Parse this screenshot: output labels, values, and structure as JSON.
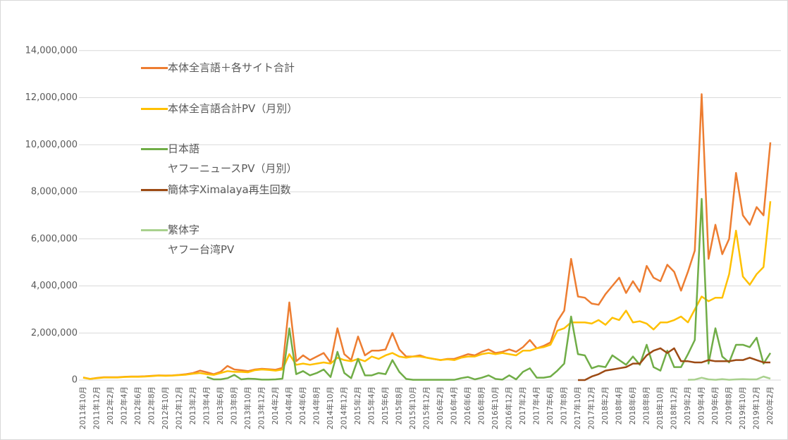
{
  "chart_data": {
    "type": "line",
    "categories": [
      "2011年10月",
      null,
      "2011年12月",
      null,
      "2012年2月",
      null,
      "2012年4月",
      null,
      "2012年6月",
      null,
      "2012年8月",
      null,
      "2012年10月",
      null,
      "2012年12月",
      null,
      "2013年2月",
      null,
      "2013年4月",
      null,
      "2013年6月",
      null,
      "2013年8月",
      null,
      "2013年10月",
      null,
      "2013年12月",
      null,
      "2014年2月",
      null,
      "2014年4月",
      null,
      "2014年6月",
      null,
      "2014年8月",
      null,
      "2014年10月",
      null,
      "2014年12月",
      null,
      "2015年2月",
      null,
      "2015年4月",
      null,
      "2015年6月",
      null,
      "2015年8月",
      null,
      "2015年10月",
      null,
      "2015年12月",
      null,
      "2016年2月",
      null,
      "2016年4月",
      null,
      "2016年6月",
      null,
      "2016年8月",
      null,
      "2016年10月",
      null,
      "2016年12月",
      null,
      "2017年2月",
      null,
      "2017年4月",
      null,
      "2017年6月",
      null,
      "2017年8月",
      null,
      "2017年10月",
      null,
      "2017年12月",
      null,
      "2018年2月",
      null,
      "2018年4月",
      null,
      "2018年6月",
      null,
      "2018年8月",
      null,
      "2018年10月",
      null,
      "2018年12月",
      null,
      "2019年2月",
      null,
      "2019年4月",
      null,
      "2019年6月",
      null,
      "2019年8月",
      null,
      "2019年10月",
      null,
      "2019年12月",
      null,
      "2020年2月"
    ],
    "series": [
      {
        "name": "本体全言語＋各サイト合計",
        "color": "#ed7d31",
        "values": [
          110000,
          50000,
          90000,
          120000,
          120000,
          120000,
          140000,
          150000,
          150000,
          160000,
          180000,
          200000,
          190000,
          200000,
          220000,
          250000,
          300000,
          400000,
          330000,
          250000,
          350000,
          600000,
          450000,
          420000,
          380000,
          450000,
          480000,
          460000,
          440000,
          520000,
          3300000,
          800000,
          1050000,
          850000,
          1000000,
          1150000,
          750000,
          2200000,
          1100000,
          850000,
          1850000,
          1050000,
          1250000,
          1250000,
          1300000,
          2000000,
          1300000,
          1000000,
          1000000,
          1050000,
          950000,
          900000,
          850000,
          900000,
          900000,
          1000000,
          1100000,
          1050000,
          1200000,
          1300000,
          1150000,
          1200000,
          1300000,
          1200000,
          1400000,
          1700000,
          1350000,
          1450000,
          1600000,
          2500000,
          2950000,
          5150000,
          3550000,
          3500000,
          3250000,
          3200000,
          3650000,
          4000000,
          4350000,
          3700000,
          4200000,
          3750000,
          4850000,
          4350000,
          4200000,
          4900000,
          4600000,
          3800000,
          4600000,
          5500000,
          12150000,
          5150000,
          6600000,
          5350000,
          6000000,
          8800000,
          7000000,
          6600000,
          7350000,
          7000000,
          10100000
        ]
      },
      {
        "name": "本体全言語合計PV（月別）",
        "color": "#ffc000",
        "values": [
          100000,
          50000,
          80000,
          110000,
          110000,
          110000,
          130000,
          140000,
          140000,
          150000,
          170000,
          190000,
          180000,
          190000,
          210000,
          230000,
          270000,
          300000,
          250000,
          220000,
          300000,
          380000,
          350000,
          350000,
          330000,
          420000,
          450000,
          430000,
          400000,
          450000,
          1100000,
          650000,
          700000,
          650000,
          700000,
          750000,
          700000,
          950000,
          850000,
          800000,
          900000,
          800000,
          1000000,
          900000,
          1050000,
          1150000,
          1000000,
          950000,
          1000000,
          1000000,
          950000,
          900000,
          850000,
          880000,
          850000,
          950000,
          1000000,
          1000000,
          1100000,
          1150000,
          1100000,
          1150000,
          1100000,
          1050000,
          1250000,
          1250000,
          1350000,
          1400000,
          1500000,
          2100000,
          2200000,
          2450000,
          2450000,
          2450000,
          2400000,
          2550000,
          2350000,
          2650000,
          2550000,
          2950000,
          2450000,
          2500000,
          2400000,
          2150000,
          2450000,
          2450000,
          2550000,
          2700000,
          2450000,
          3000000,
          3550000,
          3350000,
          3500000,
          3500000,
          4500000,
          6350000,
          4400000,
          4050000,
          4500000,
          4800000,
          7600000
        ]
      },
      {
        "name": "日本語\nヤフーニュースPV（月別）",
        "color": "#70ad47",
        "values": [
          null,
          null,
          null,
          null,
          null,
          null,
          null,
          null,
          null,
          null,
          null,
          null,
          null,
          null,
          null,
          null,
          null,
          null,
          130000,
          30000,
          30000,
          80000,
          220000,
          30000,
          60000,
          50000,
          20000,
          20000,
          30000,
          60000,
          2200000,
          250000,
          380000,
          200000,
          300000,
          450000,
          130000,
          1200000,
          300000,
          80000,
          900000,
          200000,
          200000,
          300000,
          250000,
          850000,
          350000,
          50000,
          10000,
          10000,
          10000,
          10000,
          10000,
          10000,
          10000,
          80000,
          130000,
          30000,
          100000,
          200000,
          50000,
          20000,
          200000,
          30000,
          350000,
          500000,
          100000,
          100000,
          150000,
          400000,
          700000,
          2700000,
          1100000,
          1050000,
          500000,
          600000,
          550000,
          1050000,
          850000,
          650000,
          1000000,
          650000,
          1500000,
          550000,
          400000,
          1250000,
          550000,
          550000,
          1100000,
          1700000,
          7700000,
          700000,
          2200000,
          1000000,
          750000,
          1500000,
          1500000,
          1400000,
          1800000,
          700000,
          1150000
        ]
      },
      {
        "name": "簡体字Ximalaya再生回数",
        "color": "#9c4a14",
        "values": [
          null,
          null,
          null,
          null,
          null,
          null,
          null,
          null,
          null,
          null,
          null,
          null,
          null,
          null,
          null,
          null,
          null,
          null,
          null,
          null,
          null,
          null,
          null,
          null,
          null,
          null,
          null,
          null,
          null,
          null,
          null,
          null,
          null,
          null,
          null,
          null,
          null,
          null,
          null,
          null,
          null,
          null,
          null,
          null,
          null,
          null,
          null,
          null,
          null,
          null,
          null,
          null,
          null,
          null,
          null,
          null,
          null,
          null,
          null,
          null,
          null,
          null,
          null,
          null,
          null,
          null,
          null,
          null,
          null,
          null,
          null,
          null,
          0,
          0,
          150000,
          250000,
          400000,
          450000,
          500000,
          550000,
          700000,
          700000,
          1050000,
          1250000,
          1350000,
          1150000,
          1350000,
          800000,
          800000,
          750000,
          750000,
          850000,
          800000,
          800000,
          800000,
          850000,
          850000,
          950000,
          850000,
          750000,
          750000
        ]
      },
      {
        "name": "繁体字\nヤフー台湾PV",
        "color": "#a9d18e",
        "values": [
          null,
          null,
          null,
          null,
          null,
          null,
          null,
          null,
          null,
          null,
          null,
          null,
          null,
          null,
          null,
          null,
          null,
          null,
          null,
          null,
          null,
          null,
          null,
          null,
          null,
          null,
          null,
          null,
          null,
          null,
          null,
          null,
          null,
          null,
          null,
          null,
          null,
          null,
          null,
          null,
          null,
          null,
          null,
          null,
          null,
          null,
          null,
          null,
          null,
          null,
          null,
          null,
          null,
          null,
          null,
          null,
          null,
          null,
          null,
          null,
          null,
          null,
          null,
          null,
          null,
          null,
          null,
          null,
          null,
          null,
          null,
          null,
          null,
          null,
          null,
          null,
          null,
          null,
          null,
          null,
          null,
          null,
          null,
          null,
          null,
          null,
          null,
          null,
          10000,
          20000,
          100000,
          30000,
          10000,
          40000,
          10000,
          30000,
          40000,
          30000,
          30000,
          150000,
          60000
        ]
      }
    ],
    "ylim": [
      0,
      16000000
    ],
    "yticks": [
      0,
      {
        "value": 2000000,
        "label": "2,000,000"
      },
      {
        "value": 4000000,
        "label": "4,000,000"
      },
      {
        "value": 6000000,
        "label": "6,000,000"
      },
      {
        "value": 8000000,
        "label": "8,000,000"
      },
      {
        "value": 10000000,
        "label": "10,000,000"
      },
      {
        "value": 12000000,
        "label": "12,000,000"
      },
      {
        "value": 14000000,
        "label": "14,000,000"
      }
    ],
    "grid": true
  }
}
